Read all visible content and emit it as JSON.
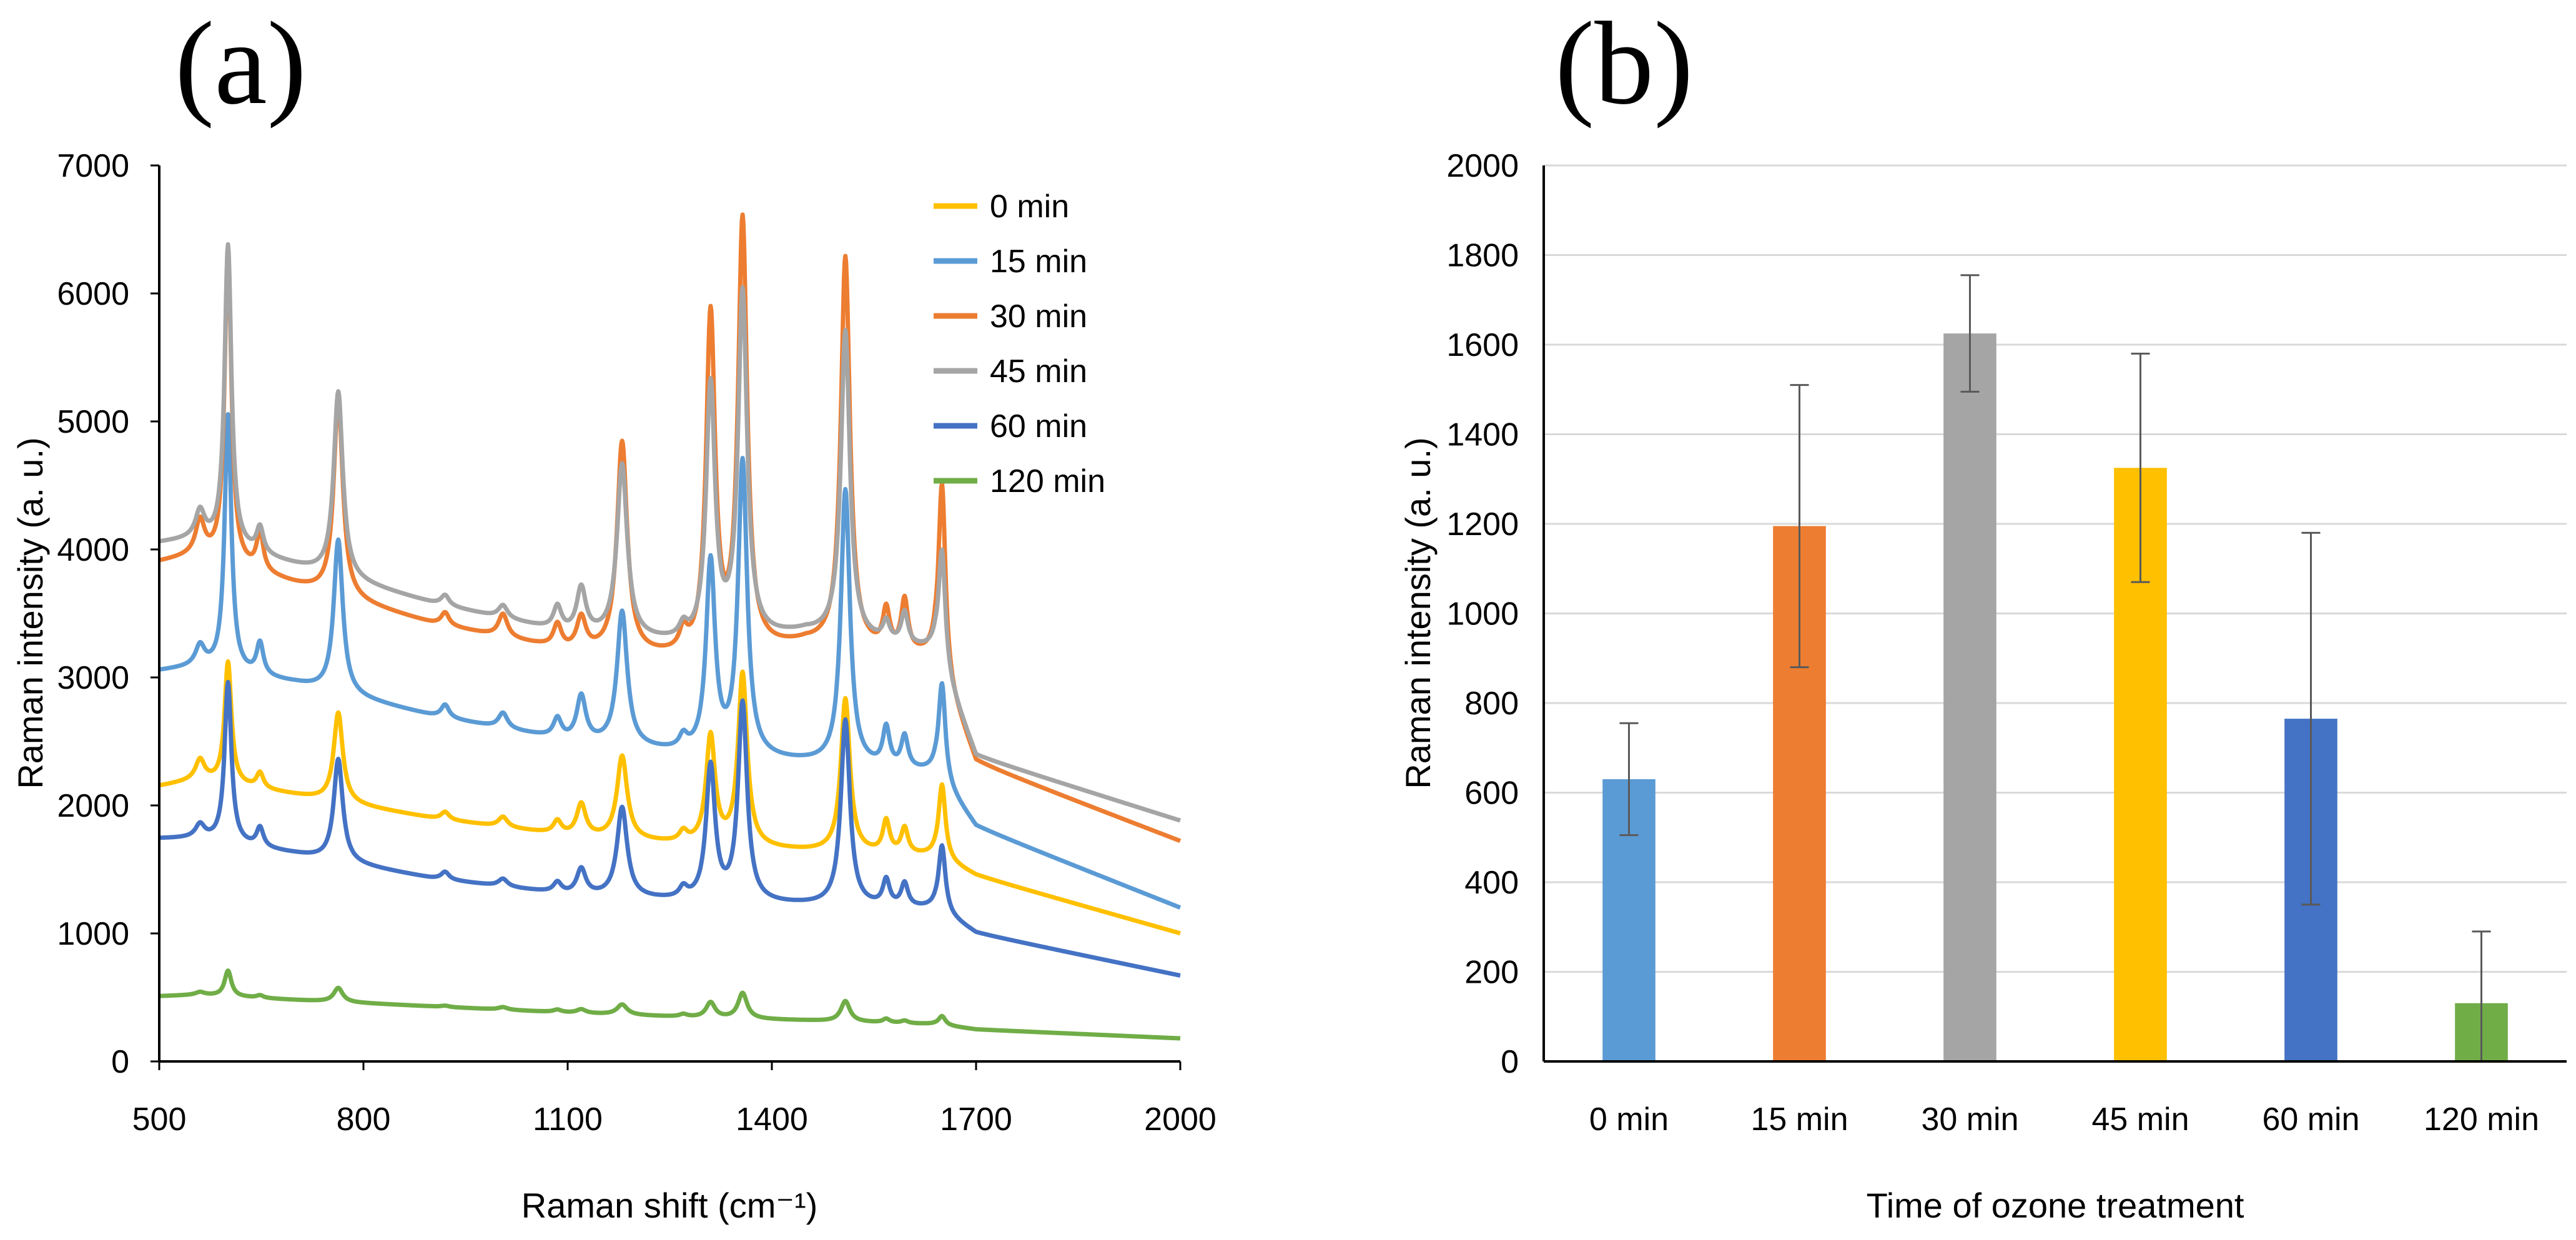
{
  "chart_data": [
    {
      "panel": "(a)",
      "type": "line",
      "xlabel": "Raman shift (cm⁻¹)",
      "ylabel": "Raman intensity (a. u.)",
      "xlim": [
        500,
        2000
      ],
      "ylim": [
        0,
        7000
      ],
      "xticks": [
        500,
        800,
        1100,
        1400,
        1700,
        2000
      ],
      "yticks": [
        0,
        1000,
        2000,
        3000,
        4000,
        5000,
        6000,
        7000
      ],
      "legend_position": "top-right",
      "peaks": [
        {
          "x": 560,
          "w": 8
        },
        {
          "x": 601,
          "w": 6
        },
        {
          "x": 648,
          "w": 6
        },
        {
          "x": 763,
          "w": 8
        },
        {
          "x": 920,
          "w": 7
        },
        {
          "x": 1005,
          "w": 8
        },
        {
          "x": 1085,
          "w": 7
        },
        {
          "x": 1120,
          "w": 8
        },
        {
          "x": 1180,
          "w": 9
        },
        {
          "x": 1270,
          "w": 7
        },
        {
          "x": 1310,
          "w": 8
        },
        {
          "x": 1357,
          "w": 8
        },
        {
          "x": 1508,
          "w": 8
        },
        {
          "x": 1568,
          "w": 6
        },
        {
          "x": 1595,
          "w": 6
        },
        {
          "x": 1650,
          "w": 6
        }
      ],
      "series": [
        {
          "name": "0 min",
          "color": "#FFC000",
          "baseline": [
            [
              500,
              2150
            ],
            [
              560,
              2200
            ],
            [
              700,
              2080
            ],
            [
              900,
              1900
            ],
            [
              1100,
              1760
            ],
            [
              1300,
              1680
            ],
            [
              1450,
              1640
            ],
            [
              1640,
              1600
            ],
            [
              1700,
              1450
            ],
            [
              2000,
              1000
            ]
          ],
          "heights": [
            150,
            950,
            120,
            700,
            60,
            80,
            100,
            250,
            650,
            80,
            850,
            1350,
            1200,
            250,
            200,
            580
          ]
        },
        {
          "name": "15 min",
          "color": "#5B9BD5",
          "baseline": [
            [
              500,
              3050
            ],
            [
              560,
              3080
            ],
            [
              700,
              2950
            ],
            [
              900,
              2700
            ],
            [
              1100,
              2500
            ],
            [
              1300,
              2380
            ],
            [
              1450,
              2330
            ],
            [
              1640,
              2250
            ],
            [
              1700,
              1830
            ],
            [
              2000,
              1200
            ]
          ],
          "heights": [
            150,
            2000,
            250,
            1200,
            100,
            120,
            150,
            350,
            1050,
            100,
            1500,
            2300,
            2150,
            300,
            250,
            760
          ]
        },
        {
          "name": "30 min",
          "color": "#ED7D31",
          "baseline": [
            [
              500,
              3900
            ],
            [
              560,
              3950
            ],
            [
              700,
              3720
            ],
            [
              900,
              3420
            ],
            [
              1100,
              3200
            ],
            [
              1300,
              3130
            ],
            [
              1450,
              3250
            ],
            [
              1640,
              3150
            ],
            [
              1700,
              2330
            ],
            [
              2000,
              1720
            ]
          ],
          "heights": [
            250,
            2450,
            300,
            1550,
            100,
            180,
            180,
            250,
            1650,
            150,
            2650,
            3350,
            3050,
            300,
            400,
            1480
          ]
        },
        {
          "name": "45 min",
          "color": "#A5A5A5",
          "baseline": [
            [
              500,
              4050
            ],
            [
              560,
              4080
            ],
            [
              700,
              3870
            ],
            [
              900,
              3580
            ],
            [
              1100,
              3340
            ],
            [
              1300,
              3240
            ],
            [
              1450,
              3340
            ],
            [
              1640,
              3200
            ],
            [
              1700,
              2380
            ],
            [
              2000,
              1880
            ]
          ],
          "heights": [
            200,
            2350,
            200,
            1450,
            80,
            100,
            180,
            350,
            1350,
            100,
            2000,
            2700,
            2400,
            150,
            250,
            920
          ]
        },
        {
          "name": "60 min",
          "color": "#4472C4",
          "baseline": [
            [
              500,
              1740
            ],
            [
              560,
              1740
            ],
            [
              700,
              1620
            ],
            [
              900,
              1430
            ],
            [
              1100,
              1300
            ],
            [
              1300,
              1240
            ],
            [
              1450,
              1220
            ],
            [
              1640,
              1190
            ],
            [
              1700,
              1000
            ],
            [
              2000,
              670
            ]
          ],
          "heights": [
            100,
            1250,
            150,
            800,
            60,
            60,
            80,
            200,
            700,
            80,
            1050,
            1550,
            1450,
            200,
            180,
            520
          ]
        },
        {
          "name": "120 min",
          "color": "#70AD47",
          "baseline": [
            [
              500,
              510
            ],
            [
              560,
              520
            ],
            [
              700,
              480
            ],
            [
              900,
              430
            ],
            [
              1100,
              380
            ],
            [
              1300,
              340
            ],
            [
              1450,
              320
            ],
            [
              1640,
              290
            ],
            [
              1700,
              250
            ],
            [
              2000,
              180
            ]
          ],
          "heights": [
            20,
            200,
            20,
            110,
            10,
            20,
            20,
            30,
            80,
            20,
            120,
            200,
            160,
            30,
            20,
            70
          ]
        }
      ]
    },
    {
      "panel": "(b)",
      "type": "bar",
      "xlabel": "Time of ozone treatment",
      "ylabel": "Raman intensity (a. u.)",
      "ylim": [
        0,
        2000
      ],
      "yticks": [
        0,
        200,
        400,
        600,
        800,
        1000,
        1200,
        1400,
        1600,
        1800,
        2000
      ],
      "grid": true,
      "categories": [
        "0 min",
        "15 min",
        "30 min",
        "45 min",
        "60 min",
        "120 min"
      ],
      "values": [
        630,
        1195,
        1625,
        1325,
        765,
        130
      ],
      "errors": [
        125,
        315,
        130,
        255,
        415,
        160
      ],
      "colors": [
        "#5B9BD5",
        "#ED7D31",
        "#A5A5A5",
        "#FFC000",
        "#4472C4",
        "#70AD47"
      ]
    }
  ]
}
